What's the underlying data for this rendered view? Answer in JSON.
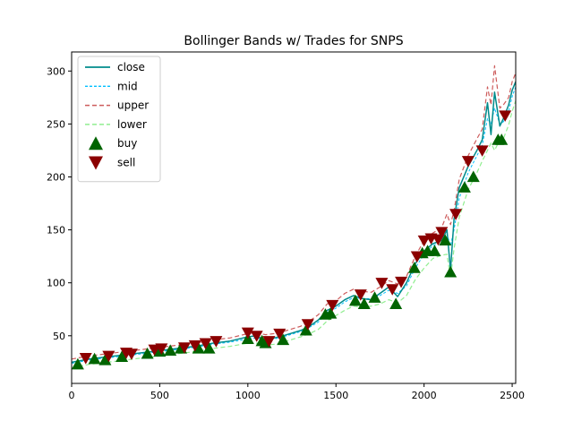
{
  "chart_data": {
    "type": "line",
    "title": "Bollinger Bands w/ Trades for SNPS",
    "xlim": [
      0,
      2520
    ],
    "ylim": [
      5,
      318
    ],
    "xticks": [
      0,
      500,
      1000,
      1500,
      2000,
      2500
    ],
    "yticks": [
      50,
      100,
      150,
      200,
      250,
      300
    ],
    "grid": false,
    "legend_position": "top-left",
    "colors": {
      "close": "#008b8b",
      "mid": "#00bfff",
      "upper": "#cd5c5c",
      "lower": "#90ee90",
      "buy": "#006400",
      "sell": "#8b0000"
    },
    "series": [
      {
        "name": "close",
        "style": "solid"
      },
      {
        "name": "mid",
        "style": "dashed"
      },
      {
        "name": "upper",
        "style": "dashed"
      },
      {
        "name": "lower",
        "style": "dashed"
      }
    ],
    "x": [
      0,
      100,
      200,
      300,
      400,
      500,
      600,
      700,
      800,
      900,
      1000,
      1050,
      1100,
      1150,
      1200,
      1300,
      1350,
      1400,
      1450,
      1500,
      1550,
      1600,
      1650,
      1700,
      1750,
      1800,
      1850,
      1900,
      1950,
      2000,
      2050,
      2100,
      2130,
      2150,
      2170,
      2200,
      2250,
      2300,
      2330,
      2360,
      2380,
      2400,
      2430,
      2450,
      2480,
      2500,
      2520
    ],
    "close": [
      25,
      28,
      30,
      32,
      34,
      36,
      38,
      40,
      43,
      45,
      49,
      50,
      45,
      48,
      50,
      55,
      59,
      65,
      74,
      78,
      84,
      88,
      85,
      84,
      90,
      96,
      87,
      100,
      118,
      130,
      137,
      140,
      150,
      112,
      160,
      190,
      210,
      225,
      235,
      270,
      240,
      280,
      248,
      255,
      268,
      282,
      290
    ],
    "mid": [
      24,
      27,
      29,
      31,
      33,
      35,
      37,
      39,
      42,
      44,
      47,
      48,
      46,
      47,
      49,
      54,
      58,
      63,
      72,
      76,
      82,
      86,
      85,
      85,
      88,
      93,
      90,
      97,
      114,
      127,
      135,
      139,
      146,
      135,
      150,
      180,
      204,
      220,
      230,
      255,
      250,
      265,
      250,
      252,
      262,
      276,
      285
    ],
    "upper": [
      28,
      31,
      33,
      35,
      37,
      39,
      41,
      43,
      46,
      48,
      52,
      53,
      51,
      52,
      54,
      59,
      64,
      70,
      80,
      83,
      90,
      94,
      92,
      91,
      96,
      102,
      99,
      106,
      125,
      140,
      147,
      152,
      165,
      155,
      168,
      198,
      220,
      236,
      245,
      285,
      268,
      305,
      265,
      268,
      275,
      290,
      298
    ],
    "lower": [
      20,
      23,
      25,
      27,
      29,
      31,
      33,
      35,
      38,
      40,
      43,
      43,
      41,
      42,
      44,
      49,
      52,
      56,
      64,
      69,
      74,
      78,
      77,
      78,
      80,
      84,
      81,
      88,
      103,
      114,
      123,
      126,
      127,
      105,
      132,
      162,
      188,
      204,
      215,
      225,
      232,
      225,
      235,
      236,
      249,
      262,
      272
    ],
    "buy": {
      "x": [
        35,
        130,
        190,
        285,
        430,
        500,
        560,
        620,
        720,
        780,
        1000,
        1080,
        1100,
        1200,
        1330,
        1440,
        1470,
        1610,
        1660,
        1720,
        1840,
        1945,
        1990,
        2020,
        2060,
        2120,
        2150,
        2230,
        2280,
        2420,
        2440
      ],
      "y": [
        23,
        28,
        27,
        30,
        33,
        35,
        36,
        38,
        38,
        38,
        47,
        45,
        43,
        46,
        55,
        70,
        71,
        83,
        80,
        86,
        80,
        114,
        128,
        130,
        130,
        140,
        110,
        190,
        200,
        235,
        235
      ]
    },
    "sell": {
      "x": [
        80,
        210,
        310,
        340,
        470,
        510,
        640,
        700,
        760,
        820,
        1000,
        1050,
        1120,
        1180,
        1340,
        1480,
        1640,
        1760,
        1820,
        1870,
        1960,
        2000,
        2040,
        2080,
        2100,
        2180,
        2250,
        2330,
        2460
      ],
      "y": [
        29,
        31,
        34,
        33,
        37,
        38,
        39,
        41,
        43,
        45,
        53,
        50,
        45,
        52,
        61,
        79,
        89,
        100,
        94,
        101,
        125,
        140,
        142,
        141,
        148,
        165,
        215,
        225,
        258
      ]
    }
  },
  "legend": {
    "entries": [
      {
        "key": "close",
        "label": "close"
      },
      {
        "key": "mid",
        "label": "mid"
      },
      {
        "key": "upper",
        "label": "upper"
      },
      {
        "key": "lower",
        "label": "lower"
      },
      {
        "key": "buy",
        "label": "buy"
      },
      {
        "key": "sell",
        "label": "sell"
      }
    ]
  }
}
